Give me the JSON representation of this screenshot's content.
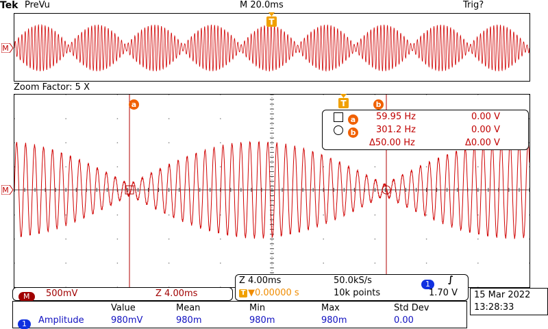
{
  "header": {
    "brand": "Tek",
    "mode": "PreVu",
    "timebase": "M 20.0ms",
    "trigger_status": "Trig?"
  },
  "markers": {
    "trigger": "T",
    "cursor_a": "a",
    "cursor_b": "b",
    "channel": "M"
  },
  "zoom": {
    "label": "Zoom Factor: 5 X"
  },
  "cursor_readout": {
    "a_freq": "59.95 Hz",
    "a_volt": "0.00 V",
    "b_freq": "301.2 Hz",
    "b_volt": "0.00 V",
    "delta_freq": "Δ50.00 Hz",
    "delta_volt": "Δ0.00 V"
  },
  "channel_bar": {
    "badge": "M",
    "scale": "500mV",
    "zoom_time": "Z 4.00ms"
  },
  "acquisition": {
    "zoom_time": "Z 4.00ms",
    "sample_rate": "50.0kS/s",
    "trigger_badge": "1",
    "trigger_slope": "∫",
    "trigger_pos": "▼0.00000 s",
    "record_length": "10k points",
    "trigger_level": "1.70 V"
  },
  "datetime": {
    "date": "15 Mar  2022",
    "time": "13:28:33"
  },
  "measurements": {
    "headers": [
      "Value",
      "Mean",
      "Min",
      "Max",
      "Std Dev"
    ],
    "row": {
      "badge": "1",
      "name": "Amplitude",
      "value": "980mV",
      "mean": "980m",
      "min": "980m",
      "max": "980m",
      "std_dev": "0.00"
    }
  },
  "colors": {
    "trace": "#d00000",
    "trigger_marker": "#f0a000",
    "cursor_badge": "#f06000",
    "channel_badge": "#1030e0",
    "math_badge": "#a00000"
  },
  "chart_data": {
    "type": "line",
    "overview": {
      "signal": "amplitude-modulated sine (beat)",
      "beats_visible": 9
    },
    "zoom": {
      "cursor_a_hz": 59.95,
      "cursor_b_hz": 301.2,
      "delta_hz": 50.0,
      "cursor_a_v": 0.0,
      "cursor_b_v": 0.0,
      "delta_v": 0.0,
      "vertical_scale_mV_per_div": 500,
      "horizontal_scale_ms_per_div": 4.0
    }
  }
}
